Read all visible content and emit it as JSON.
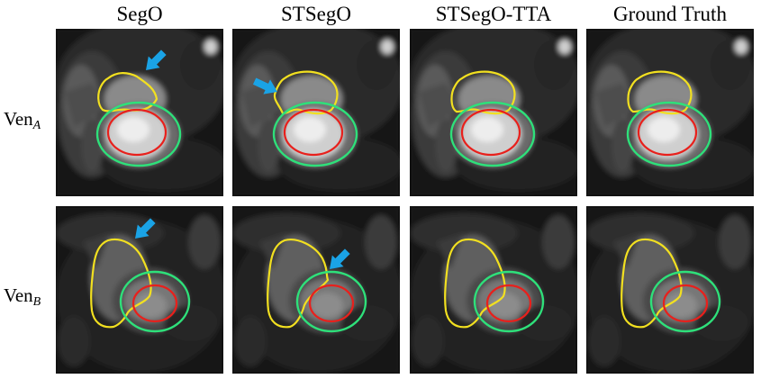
{
  "columns": [
    {
      "title": "SegO"
    },
    {
      "title": "STSegO"
    },
    {
      "title": "STSegO-TTA"
    },
    {
      "title": "Ground Truth"
    }
  ],
  "rows": [
    {
      "label_main": "Ven",
      "label_sub": "A"
    },
    {
      "label_main": "Ven",
      "label_sub": "B"
    }
  ],
  "colors": {
    "right_ventricle": "#f2e020",
    "myocardium_outer": "#2ee07a",
    "blood_pool": "#e8201c",
    "arrow": "#1aa3e6"
  }
}
